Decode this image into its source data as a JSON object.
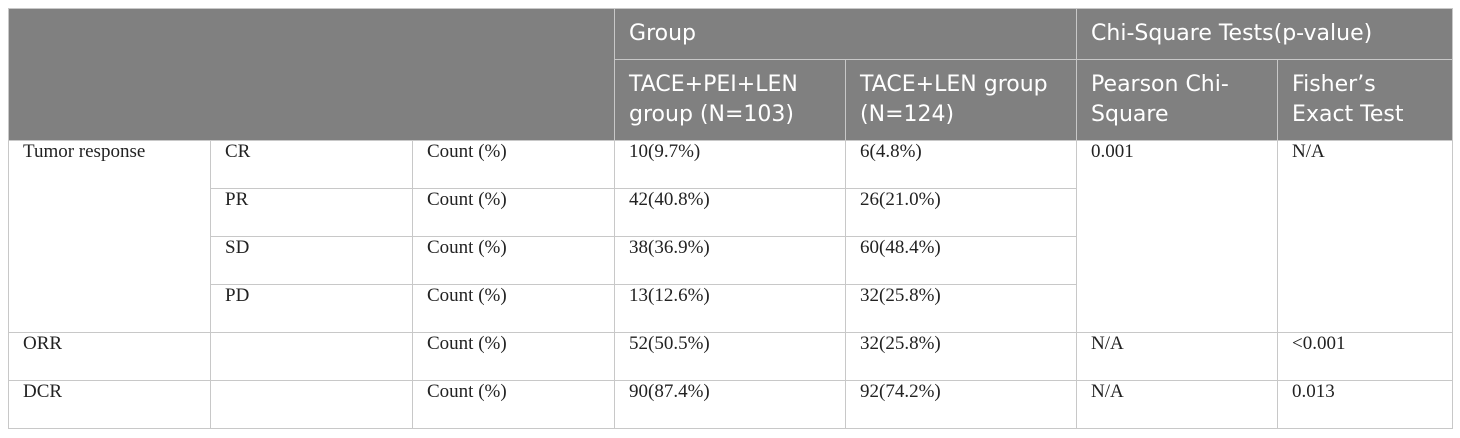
{
  "header": {
    "group": "Group",
    "chi_square": "Chi-Square Tests(p-value)",
    "col_tace_pei_len": "TACE+PEI+LEN group (N=103)",
    "col_tace_len": "TACE+LEN group (N=124)",
    "col_pearson": "Pearson Chi-Square",
    "col_fisher": "Fisher’s Exact Test"
  },
  "rows": [
    {
      "label": "Tumor response",
      "sub": "CR",
      "stat": "Count (%)",
      "g1": "10(9.7%)",
      "g2": "6(4.8%)",
      "pearson": "0.001",
      "fisher": "N/A"
    },
    {
      "label": "",
      "sub": "PR",
      "stat": "Count (%)",
      "g1": "42(40.8%)",
      "g2": "26(21.0%)"
    },
    {
      "label": "",
      "sub": "SD",
      "stat": "Count (%)",
      "g1": "38(36.9%)",
      "g2": "60(48.4%)"
    },
    {
      "label": "",
      "sub": "PD",
      "stat": "Count (%)",
      "g1": "13(12.6%)",
      "g2": "32(25.8%)"
    },
    {
      "label": "ORR",
      "sub": "",
      "stat": "Count (%)",
      "g1": "52(50.5%)",
      "g2": "32(25.8%)",
      "pearson": "N/A",
      "fisher": "<0.001"
    },
    {
      "label": "DCR",
      "sub": "",
      "stat": "Count (%)",
      "g1": "90(87.4%)",
      "g2": "92(74.2%)",
      "pearson": "N/A",
      "fisher": "0.013"
    }
  ]
}
